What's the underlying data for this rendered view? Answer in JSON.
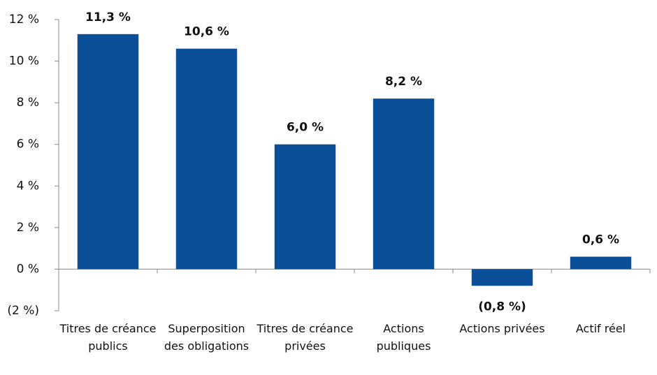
{
  "chart_data": {
    "type": "bar",
    "categories": [
      "Titres de créance publics",
      "Superposition des obligations",
      "Titres de créance privées",
      "Actions publiques",
      "Actions privées",
      "Actif réel"
    ],
    "values": [
      11.3,
      10.6,
      6.0,
      8.2,
      -0.8,
      0.6
    ],
    "value_labels": [
      "11,3 %",
      "10,6 %",
      "6,0 %",
      "8,2 %",
      "(0,8 %)",
      "0,6 %"
    ],
    "color": "#0a4f98",
    "ylim": [
      -2,
      12
    ],
    "yticks": [
      {
        "value": -2,
        "label": "(2 %)"
      },
      {
        "value": 0,
        "label": "0 %"
      },
      {
        "value": 2,
        "label": "2 %"
      },
      {
        "value": 4,
        "label": "4 %"
      },
      {
        "value": 6,
        "label": "6 %"
      },
      {
        "value": 8,
        "label": "8 %"
      },
      {
        "value": 10,
        "label": "10 %"
      },
      {
        "value": 12,
        "label": "12 %"
      }
    ],
    "grid": false
  }
}
